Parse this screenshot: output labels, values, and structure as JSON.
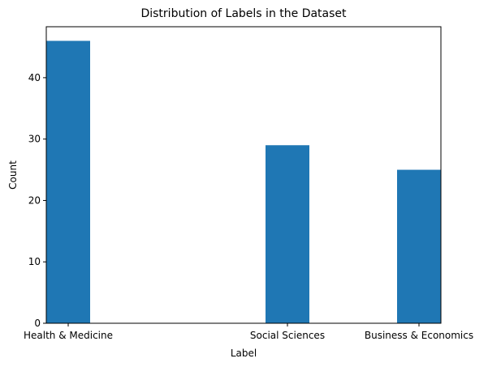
{
  "chart_data": {
    "type": "bar",
    "title": "Distribution of Labels in the Dataset",
    "xlabel": "Label",
    "ylabel": "Count",
    "categories": [
      "Health & Medicine",
      "Social Sciences",
      "Business & Economics"
    ],
    "values": [
      46,
      29,
      25
    ],
    "x_positions": [
      0,
      1.25,
      2
    ],
    "xlim": [
      -0.125,
      2.125
    ],
    "ylim": [
      0,
      48.3
    ],
    "y_ticks": [
      0,
      10,
      20,
      30,
      40
    ],
    "bar_width_units": 0.25,
    "grid": false,
    "legend": "none",
    "bar_color": "#1f77b4"
  }
}
